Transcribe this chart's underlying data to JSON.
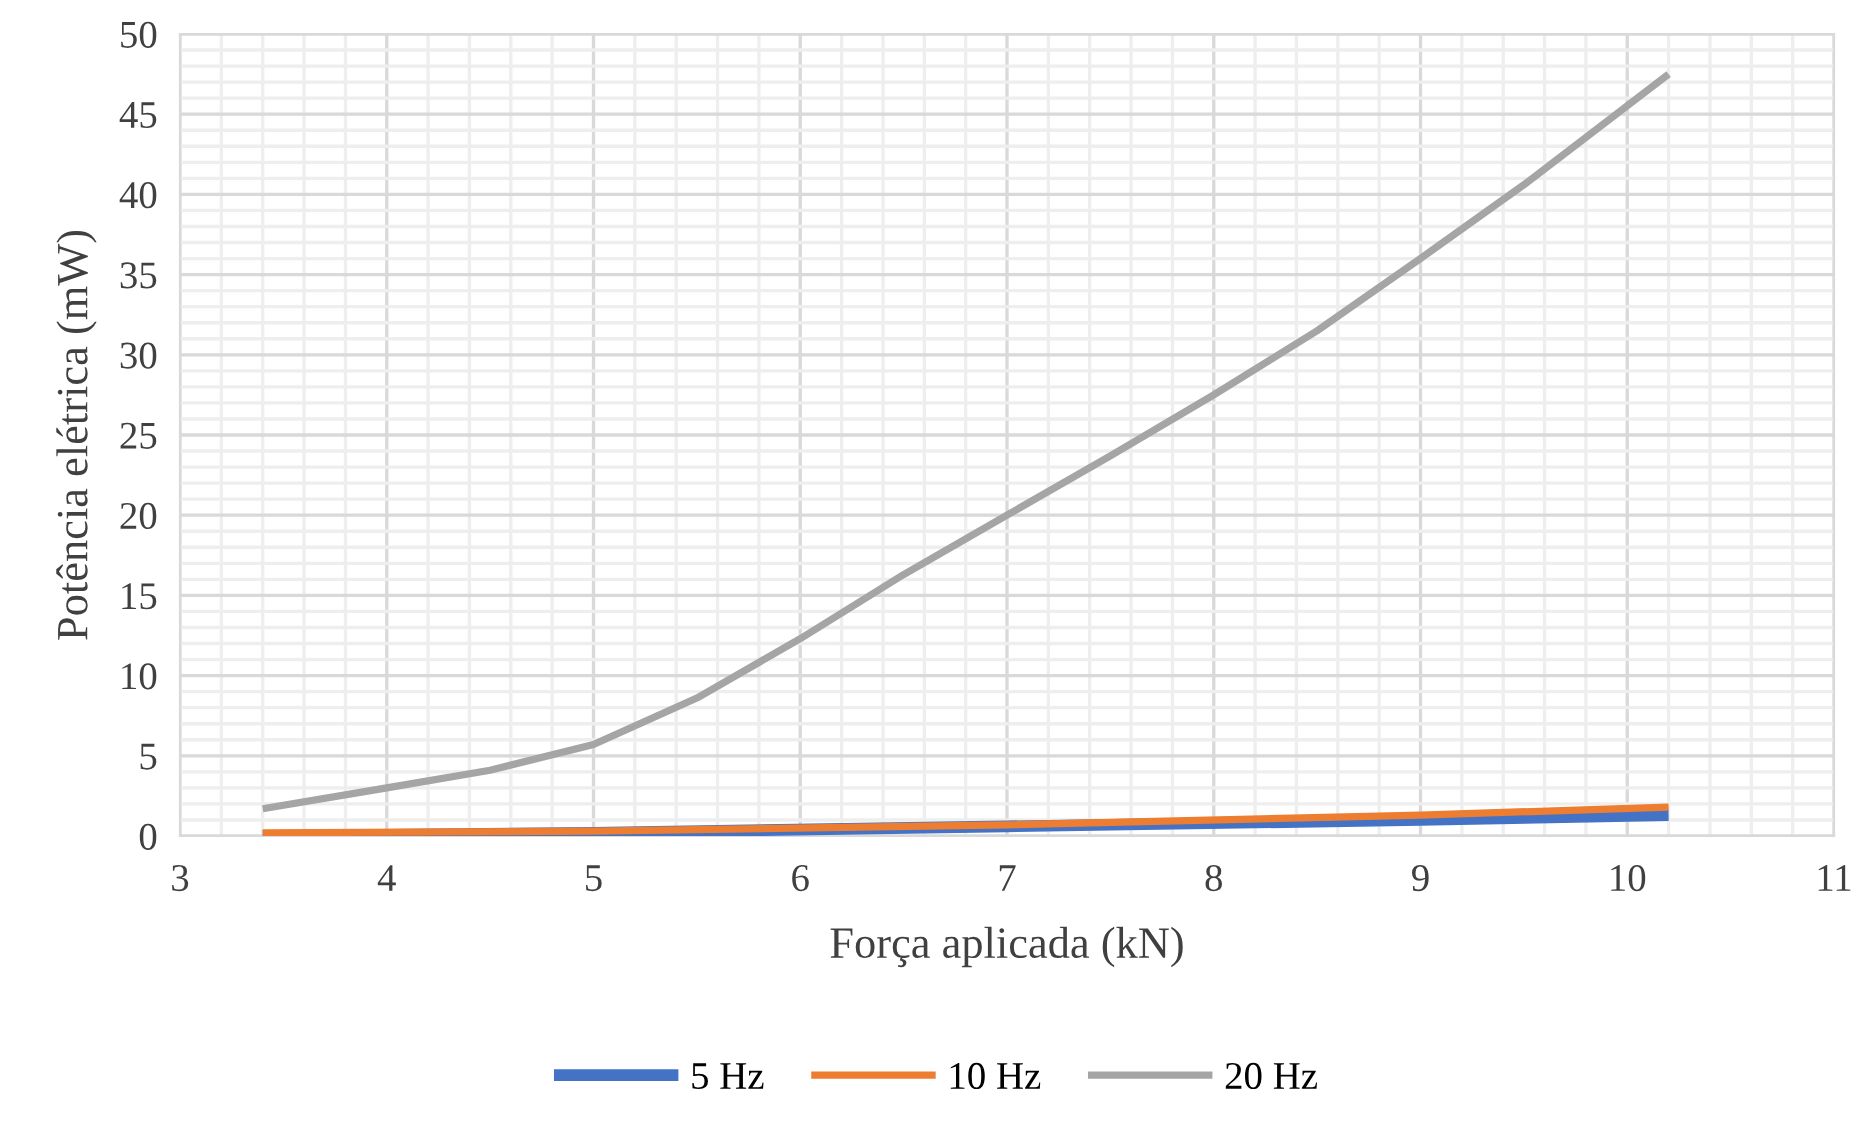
{
  "chart_data": {
    "type": "line",
    "xlabel": "Força aplicada (kN)",
    "ylabel": "Potência elétrica (mW)",
    "xlim": [
      3,
      11
    ],
    "xticks": [
      3,
      4,
      5,
      6,
      7,
      8,
      9,
      10,
      11
    ],
    "ylim": [
      0,
      50
    ],
    "yticks": [
      0,
      5,
      10,
      15,
      20,
      25,
      30,
      35,
      40,
      45,
      50
    ],
    "grid": true,
    "legend": "bottom",
    "marker": "none",
    "line_style": "solid",
    "series": [
      {
        "name": "5 Hz",
        "color": "#4472c4",
        "x": [
          3.4,
          5,
          7,
          9,
          10.2
        ],
        "values": [
          0.0,
          0.2,
          0.6,
          1.0,
          1.3
        ]
      },
      {
        "name": "10 Hz",
        "color": "#ed7d31",
        "x": [
          3.4,
          5,
          7,
          9,
          10.2
        ],
        "values": [
          0.2,
          0.3,
          0.7,
          1.3,
          1.8
        ]
      },
      {
        "name": "20 Hz",
        "color": "#a5a5a5",
        "x": [
          3.4,
          4,
          4.5,
          5,
          5.5,
          6,
          6.5,
          7,
          7.5,
          8,
          8.5,
          9,
          9.5,
          10.2
        ],
        "values": [
          1.7,
          3.0,
          4.1,
          5.7,
          8.6,
          12.3,
          16.3,
          20.0,
          23.7,
          27.5,
          31.5,
          36.0,
          40.6,
          47.5
        ]
      }
    ]
  }
}
